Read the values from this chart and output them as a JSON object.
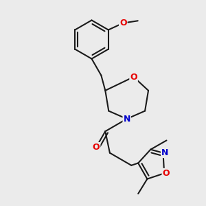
{
  "bg_color": "#ebebeb",
  "bond_color": "#1a1a1a",
  "bond_width": 1.5,
  "atom_colors": {
    "O": "#e60000",
    "N": "#0000cc",
    "C": "#1a1a1a"
  },
  "font_size_atom": 9,
  "font_size_methyl": 7.5,
  "xlim": [
    -2.5,
    5.5
  ],
  "ylim": [
    -5.5,
    3.5
  ]
}
